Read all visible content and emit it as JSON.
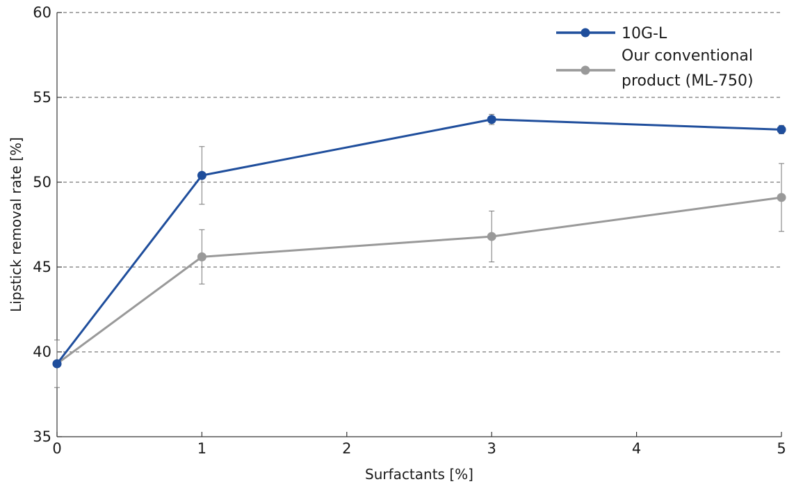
{
  "chart_data": {
    "type": "line",
    "xlabel": "Surfactants [%]",
    "ylabel": "Lipstick removal rate [%]",
    "xlim": [
      0,
      5
    ],
    "ylim": [
      35,
      60
    ],
    "xticks": [
      0,
      1,
      2,
      3,
      4,
      5
    ],
    "yticks": [
      35,
      40,
      45,
      50,
      55,
      60
    ],
    "grid": "horizontal dashed",
    "legend_position": "top-right",
    "series": [
      {
        "name": "10G-L",
        "label_lines": [
          "10G-L"
        ],
        "color": "#1f4e9c",
        "x": [
          0,
          1,
          3,
          5
        ],
        "y": [
          39.3,
          50.4,
          53.7,
          53.1
        ],
        "error": [
          0,
          1.7,
          0.3,
          0.25
        ]
      },
      {
        "name": "Our conventional product (ML-750)",
        "label_lines": [
          "Our conventional",
          "product (ML-750)"
        ],
        "color": "#999999",
        "x": [
          0,
          1,
          3,
          5
        ],
        "y": [
          39.3,
          45.6,
          46.8,
          49.1
        ],
        "error": [
          1.4,
          1.6,
          1.5,
          2.0
        ]
      }
    ]
  }
}
